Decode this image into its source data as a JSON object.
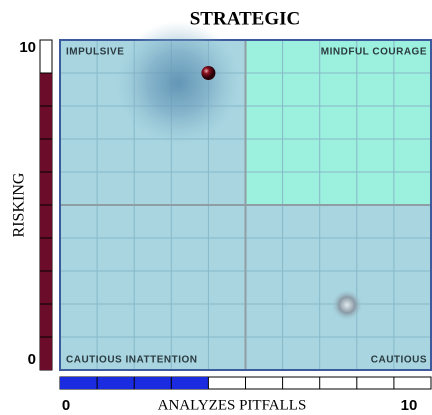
{
  "chart_data": {
    "type": "quadrant",
    "title": "STRATEGIC",
    "y_label": "RISKING",
    "x_label": "ANALYZES PITFALLS",
    "quadrant_labels": [
      "IMPULSIVE",
      "MINDFUL COURAGE",
      "CAUTIOUS INATTENTION",
      "CAUTIOUS"
    ],
    "x": [
      4
    ],
    "values": [
      9
    ],
    "xlim": [
      0,
      10
    ],
    "ylim": [
      0,
      10
    ],
    "xticks": [
      0,
      10
    ],
    "yticks": [
      0,
      10
    ],
    "xgrid": [
      1,
      2,
      3,
      4,
      5,
      6,
      7,
      8,
      9
    ],
    "ygrid": [
      1,
      2,
      3,
      4,
      5,
      6,
      7,
      8,
      9
    ],
    "xsplit": 5,
    "ysplit": 5,
    "x_gauge_color": "#1a2be0",
    "y_gauge_color": "#6a0c2a",
    "background": "#a8d5e0",
    "highlight": "#9cf0de"
  }
}
